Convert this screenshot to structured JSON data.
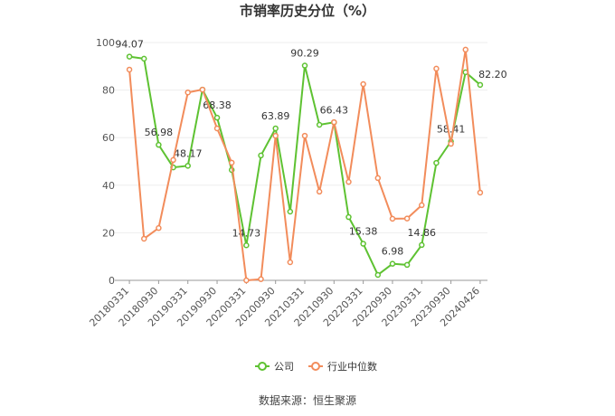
{
  "chart_data": {
    "type": "line",
    "title": "市销率历史分位（%）",
    "categories": [
      "20180331",
      null,
      "20180930",
      null,
      "20190331",
      null,
      "20190930",
      null,
      "20200331",
      null,
      "20200930",
      null,
      "20210331",
      null,
      "20210930",
      null,
      "20220331",
      null,
      "20220930",
      null,
      "20230331",
      null,
      "20230930",
      null,
      "20240426"
    ],
    "series": [
      {
        "name": "公司",
        "color": "#5ec232",
        "values": [
          94.07,
          93.2,
          56.98,
          47.5,
          48.17,
          80.2,
          68.38,
          46.4,
          14.73,
          52.5,
          63.89,
          28.9,
          90.29,
          65.4,
          66.43,
          26.6,
          15.38,
          2.3,
          6.98,
          6.5,
          14.86,
          49.4,
          58.41,
          87.5,
          82.2
        ],
        "value_labels": [
          "94.07",
          null,
          "56.98",
          null,
          "48.17",
          null,
          "68.38",
          null,
          "14.73",
          null,
          "63.89",
          null,
          "90.29",
          null,
          "66.43",
          null,
          "15.38",
          null,
          "6.98",
          null,
          "14.86",
          null,
          "58.41",
          null,
          "82.20"
        ]
      },
      {
        "name": "行业中位数",
        "color": "#f28c5b",
        "values": [
          88.6,
          17.5,
          22,
          50.6,
          79,
          80.2,
          63.9,
          49.5,
          0,
          0.5,
          60.8,
          7.6,
          60.8,
          37.3,
          66.5,
          41.4,
          82.5,
          43,
          25.9,
          26,
          31.6,
          89,
          57.4,
          97,
          36.9
        ]
      }
    ],
    "ylim": [
      0,
      100
    ],
    "yticks": [
      0,
      20,
      40,
      60,
      80,
      100
    ],
    "grid": true,
    "legend": "bottom",
    "source": "数据来源：恒生聚源"
  }
}
